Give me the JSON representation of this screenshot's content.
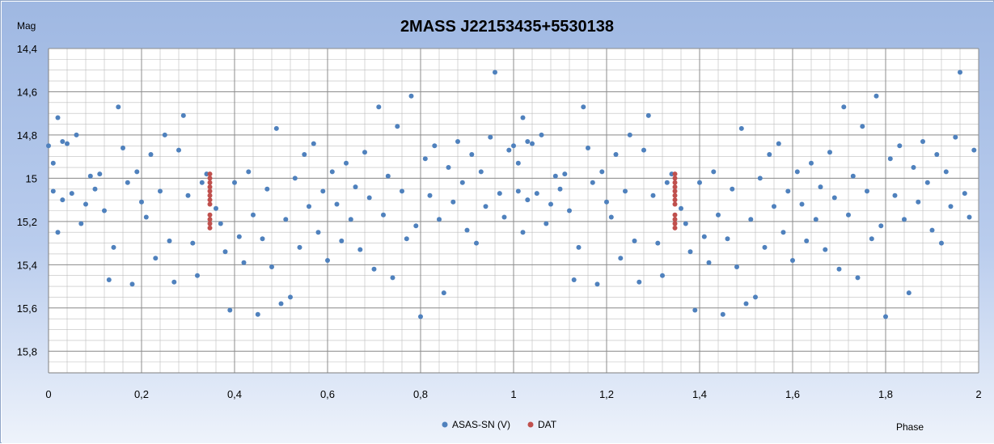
{
  "chart_data": {
    "type": "scatter",
    "title": "2MASS J22153435+5530138",
    "xlabel": "Phase",
    "ylabel": "Mag",
    "xlim": [
      0,
      2
    ],
    "ylim": [
      14.4,
      15.9
    ],
    "y_inverted": true,
    "x_ticks": [
      "0",
      "0,2",
      "0,4",
      "0,6",
      "0,8",
      "1",
      "1,2",
      "1,4",
      "1,6",
      "1,8",
      "2"
    ],
    "y_ticks": [
      "14,4",
      "14,6",
      "14,8",
      "15",
      "15,2",
      "15,4",
      "15,6",
      "15,8"
    ],
    "x_tick_values": [
      0,
      0.2,
      0.4,
      0.6,
      0.8,
      1.0,
      1.2,
      1.4,
      1.6,
      1.8,
      2.0
    ],
    "y_tick_values": [
      14.4,
      14.6,
      14.8,
      15.0,
      15.2,
      15.4,
      15.6,
      15.8
    ],
    "grid": "major and minor",
    "legend_position": "bottom-center",
    "background": "#a3bbe4",
    "series": [
      {
        "name": "ASAS-SN (V)",
        "color": "#4f81bd",
        "points": [
          [
            0.0,
            14.85
          ],
          [
            0.01,
            14.93
          ],
          [
            0.01,
            15.06
          ],
          [
            0.02,
            15.25
          ],
          [
            0.02,
            14.72
          ],
          [
            0.03,
            14.83
          ],
          [
            0.03,
            15.1
          ],
          [
            0.04,
            14.84
          ],
          [
            0.05,
            15.07
          ],
          [
            0.06,
            14.8
          ],
          [
            0.07,
            15.21
          ],
          [
            0.08,
            15.12
          ],
          [
            0.09,
            14.99
          ],
          [
            0.1,
            15.05
          ],
          [
            0.11,
            14.98
          ],
          [
            0.12,
            15.15
          ],
          [
            0.13,
            15.47
          ],
          [
            0.14,
            15.32
          ],
          [
            0.15,
            14.67
          ],
          [
            0.16,
            14.86
          ],
          [
            0.17,
            15.02
          ],
          [
            0.18,
            15.49
          ],
          [
            0.19,
            14.97
          ],
          [
            0.2,
            15.11
          ],
          [
            0.21,
            15.18
          ],
          [
            0.22,
            14.89
          ],
          [
            0.23,
            15.37
          ],
          [
            0.24,
            15.06
          ],
          [
            0.25,
            14.8
          ],
          [
            0.26,
            15.29
          ],
          [
            0.27,
            15.48
          ],
          [
            0.28,
            14.87
          ],
          [
            0.29,
            14.71
          ],
          [
            0.3,
            15.08
          ],
          [
            0.31,
            15.3
          ],
          [
            0.32,
            15.45
          ],
          [
            0.33,
            15.02
          ],
          [
            0.34,
            14.98
          ],
          [
            0.36,
            15.14
          ],
          [
            0.37,
            15.21
          ],
          [
            0.38,
            15.34
          ],
          [
            0.39,
            15.61
          ],
          [
            0.4,
            15.02
          ],
          [
            0.41,
            15.27
          ],
          [
            0.42,
            15.39
          ],
          [
            0.43,
            14.97
          ],
          [
            0.44,
            15.17
          ],
          [
            0.45,
            15.63
          ],
          [
            0.46,
            15.28
          ],
          [
            0.47,
            15.05
          ],
          [
            0.48,
            15.41
          ],
          [
            0.49,
            14.77
          ],
          [
            0.5,
            15.58
          ],
          [
            0.51,
            15.19
          ],
          [
            0.52,
            15.55
          ],
          [
            0.53,
            15.0
          ],
          [
            0.54,
            15.32
          ],
          [
            0.55,
            14.89
          ],
          [
            0.56,
            15.13
          ],
          [
            0.57,
            14.84
          ],
          [
            0.58,
            15.25
          ],
          [
            0.59,
            15.06
          ],
          [
            0.6,
            15.38
          ],
          [
            0.61,
            14.97
          ],
          [
            0.62,
            15.12
          ],
          [
            0.63,
            15.29
          ],
          [
            0.64,
            14.93
          ],
          [
            0.65,
            15.19
          ],
          [
            0.66,
            15.04
          ],
          [
            0.67,
            15.33
          ],
          [
            0.68,
            14.88
          ],
          [
            0.69,
            15.09
          ],
          [
            0.7,
            15.42
          ],
          [
            0.71,
            14.67
          ],
          [
            0.72,
            15.17
          ],
          [
            0.73,
            14.99
          ],
          [
            0.74,
            15.46
          ],
          [
            0.75,
            14.76
          ],
          [
            0.76,
            15.06
          ],
          [
            0.77,
            15.28
          ],
          [
            0.78,
            14.62
          ],
          [
            0.79,
            15.22
          ],
          [
            0.8,
            15.64
          ],
          [
            0.81,
            14.91
          ],
          [
            0.82,
            15.08
          ],
          [
            0.83,
            14.85
          ],
          [
            0.84,
            15.19
          ],
          [
            0.85,
            15.53
          ],
          [
            0.86,
            14.95
          ],
          [
            0.87,
            15.11
          ],
          [
            0.88,
            14.83
          ],
          [
            0.89,
            15.02
          ],
          [
            0.9,
            15.24
          ],
          [
            0.91,
            14.89
          ],
          [
            0.92,
            15.3
          ],
          [
            0.93,
            14.97
          ],
          [
            0.94,
            15.13
          ],
          [
            0.95,
            14.81
          ],
          [
            0.96,
            14.51
          ],
          [
            0.97,
            15.07
          ],
          [
            0.98,
            15.18
          ],
          [
            0.99,
            14.87
          ],
          [
            1.0,
            14.85
          ],
          [
            1.01,
            14.93
          ],
          [
            1.01,
            15.06
          ],
          [
            1.02,
            15.25
          ],
          [
            1.02,
            14.72
          ],
          [
            1.03,
            14.83
          ],
          [
            1.03,
            15.1
          ],
          [
            1.04,
            14.84
          ],
          [
            1.05,
            15.07
          ],
          [
            1.06,
            14.8
          ],
          [
            1.07,
            15.21
          ],
          [
            1.08,
            15.12
          ],
          [
            1.09,
            14.99
          ],
          [
            1.1,
            15.05
          ],
          [
            1.11,
            14.98
          ],
          [
            1.12,
            15.15
          ],
          [
            1.13,
            15.47
          ],
          [
            1.14,
            15.32
          ],
          [
            1.15,
            14.67
          ],
          [
            1.16,
            14.86
          ],
          [
            1.17,
            15.02
          ],
          [
            1.18,
            15.49
          ],
          [
            1.19,
            14.97
          ],
          [
            1.2,
            15.11
          ],
          [
            1.21,
            15.18
          ],
          [
            1.22,
            14.89
          ],
          [
            1.23,
            15.37
          ],
          [
            1.24,
            15.06
          ],
          [
            1.25,
            14.8
          ],
          [
            1.26,
            15.29
          ],
          [
            1.27,
            15.48
          ],
          [
            1.28,
            14.87
          ],
          [
            1.29,
            14.71
          ],
          [
            1.3,
            15.08
          ],
          [
            1.31,
            15.3
          ],
          [
            1.32,
            15.45
          ],
          [
            1.33,
            15.02
          ],
          [
            1.34,
            14.98
          ],
          [
            1.36,
            15.14
          ],
          [
            1.37,
            15.21
          ],
          [
            1.38,
            15.34
          ],
          [
            1.39,
            15.61
          ],
          [
            1.4,
            15.02
          ],
          [
            1.41,
            15.27
          ],
          [
            1.42,
            15.39
          ],
          [
            1.43,
            14.97
          ],
          [
            1.44,
            15.17
          ],
          [
            1.45,
            15.63
          ],
          [
            1.46,
            15.28
          ],
          [
            1.47,
            15.05
          ],
          [
            1.48,
            15.41
          ],
          [
            1.49,
            14.77
          ],
          [
            1.5,
            15.58
          ],
          [
            1.51,
            15.19
          ],
          [
            1.52,
            15.55
          ],
          [
            1.53,
            15.0
          ],
          [
            1.54,
            15.32
          ],
          [
            1.55,
            14.89
          ],
          [
            1.56,
            15.13
          ],
          [
            1.57,
            14.84
          ],
          [
            1.58,
            15.25
          ],
          [
            1.59,
            15.06
          ],
          [
            1.6,
            15.38
          ],
          [
            1.61,
            14.97
          ],
          [
            1.62,
            15.12
          ],
          [
            1.63,
            15.29
          ],
          [
            1.64,
            14.93
          ],
          [
            1.65,
            15.19
          ],
          [
            1.66,
            15.04
          ],
          [
            1.67,
            15.33
          ],
          [
            1.68,
            14.88
          ],
          [
            1.69,
            15.09
          ],
          [
            1.7,
            15.42
          ],
          [
            1.71,
            14.67
          ],
          [
            1.72,
            15.17
          ],
          [
            1.73,
            14.99
          ],
          [
            1.74,
            15.46
          ],
          [
            1.75,
            14.76
          ],
          [
            1.76,
            15.06
          ],
          [
            1.77,
            15.28
          ],
          [
            1.78,
            14.62
          ],
          [
            1.79,
            15.22
          ],
          [
            1.8,
            15.64
          ],
          [
            1.81,
            14.91
          ],
          [
            1.82,
            15.08
          ],
          [
            1.83,
            14.85
          ],
          [
            1.84,
            15.19
          ],
          [
            1.85,
            15.53
          ],
          [
            1.86,
            14.95
          ],
          [
            1.87,
            15.11
          ],
          [
            1.88,
            14.83
          ],
          [
            1.89,
            15.02
          ],
          [
            1.9,
            15.24
          ],
          [
            1.91,
            14.89
          ],
          [
            1.92,
            15.3
          ],
          [
            1.93,
            14.97
          ],
          [
            1.94,
            15.13
          ],
          [
            1.95,
            14.81
          ],
          [
            1.96,
            14.51
          ],
          [
            1.97,
            15.07
          ],
          [
            1.98,
            15.18
          ],
          [
            1.99,
            14.87
          ]
        ]
      },
      {
        "name": "DAT",
        "color": "#c0504d",
        "points": [
          [
            0.347,
            14.98
          ],
          [
            0.347,
            15.0
          ],
          [
            0.347,
            15.02
          ],
          [
            0.347,
            15.04
          ],
          [
            0.347,
            15.06
          ],
          [
            0.347,
            15.08
          ],
          [
            0.347,
            15.1
          ],
          [
            0.347,
            15.12
          ],
          [
            0.347,
            15.17
          ],
          [
            0.347,
            15.19
          ],
          [
            0.347,
            15.21
          ],
          [
            0.347,
            15.23
          ],
          [
            1.347,
            14.98
          ],
          [
            1.347,
            15.0
          ],
          [
            1.347,
            15.02
          ],
          [
            1.347,
            15.04
          ],
          [
            1.347,
            15.06
          ],
          [
            1.347,
            15.08
          ],
          [
            1.347,
            15.1
          ],
          [
            1.347,
            15.12
          ],
          [
            1.347,
            15.17
          ],
          [
            1.347,
            15.19
          ],
          [
            1.347,
            15.21
          ],
          [
            1.347,
            15.23
          ]
        ]
      }
    ]
  }
}
